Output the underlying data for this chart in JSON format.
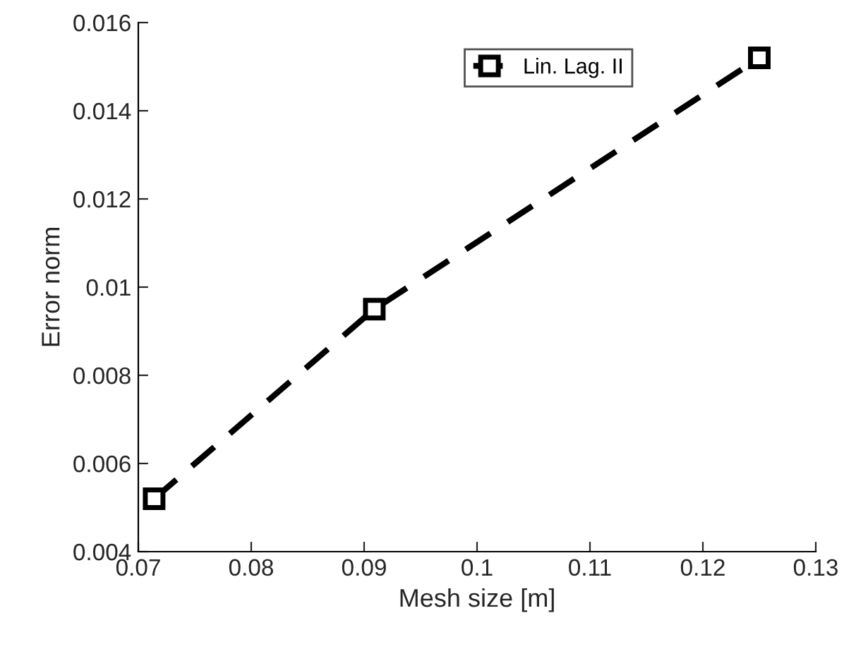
{
  "chart_data": {
    "type": "line",
    "xlabel": "Mesh size [m]",
    "ylabel": "Error norm",
    "x": [
      0.0714,
      0.0909,
      0.125
    ],
    "series": [
      {
        "name": "Lin. Lag. II",
        "color": "#000000",
        "values": [
          0.0052,
          0.0095,
          0.0152
        ]
      }
    ],
    "xlim": [
      0.07,
      0.13
    ],
    "xticks": [
      0.07,
      0.08,
      0.09,
      0.1,
      0.11,
      0.12,
      0.13
    ],
    "ylim": [
      0.004,
      0.016
    ],
    "yticks": [
      0.004,
      0.006,
      0.008,
      0.01,
      0.012,
      0.014,
      0.016
    ],
    "marker": "square",
    "line_style": "dashed",
    "legend": "top right",
    "grid": false
  }
}
